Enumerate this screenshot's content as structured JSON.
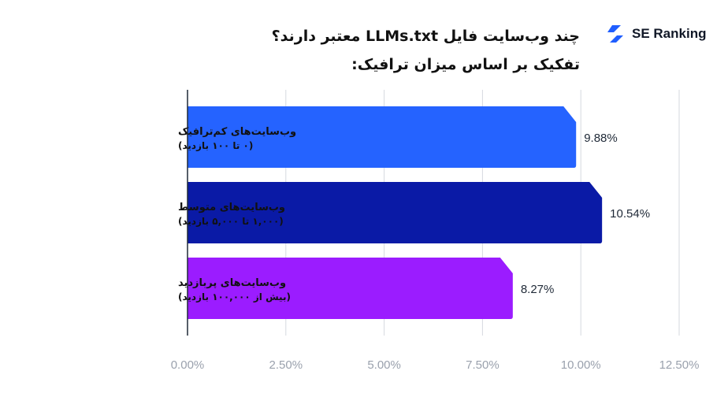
{
  "logo": {
    "text": "SE Ranking",
    "icon": "se-ranking-logo-icon",
    "color": "#1f5eff"
  },
  "title": {
    "line1": "چند وب‌سایت فایل LLMs.txt معتبر دارند؟",
    "line2": "تفکیک بر اساس میزان ترافیک:"
  },
  "chart_data": {
    "type": "bar",
    "orientation": "horizontal",
    "categories": [
      {
        "label": "وب‌سایت‌های کم‌ترافیک",
        "sublabel": "(۰ تا ۱۰۰ بازدید)"
      },
      {
        "label": "وب‌سایت‌های متوسط",
        "sublabel": "(۱,۰۰۰ تا ۵,۰۰۰ بازدید)"
      },
      {
        "label": "وب‌سایت‌های پربازدید",
        "sublabel": "(بیش از ۱۰۰,۰۰۰ بازدید)"
      }
    ],
    "values": [
      9.88,
      10.54,
      8.27
    ],
    "value_labels": [
      "9.88%",
      "10.54%",
      "8.27%"
    ],
    "colors": [
      "#2563ff",
      "#0a1aa6",
      "#9b1cff"
    ],
    "xlim": [
      0,
      12.5
    ],
    "xticks": [
      0,
      2.5,
      5,
      7.5,
      10,
      12.5
    ],
    "xtick_labels": [
      "0.00%",
      "2.50%",
      "5.00%",
      "7.50%",
      "10.00%",
      "12.50%"
    ],
    "grid": true,
    "grid_color": "#d6d9df"
  }
}
